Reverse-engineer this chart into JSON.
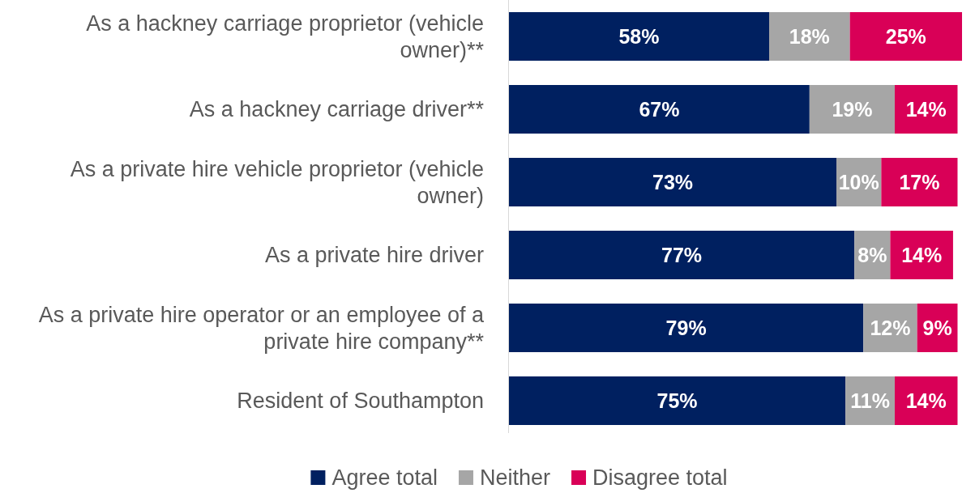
{
  "chart_data": {
    "type": "bar",
    "orientation": "horizontal",
    "stacked": true,
    "legend": "bottom",
    "categories": [
      "As a hackney carriage proprietor (vehicle owner)**",
      "As a hackney carriage driver**",
      "As a private hire vehicle proprietor (vehicle owner)",
      "As a private hire driver",
      "As a private hire operator or an employee of a private hire company**",
      "Resident of Southampton"
    ],
    "series": [
      {
        "name": "Agree total",
        "color": "#002060",
        "values": [
          58,
          67,
          73,
          77,
          79,
          75
        ],
        "value_labels": [
          "58%",
          "67%",
          "73%",
          "77%",
          "79%",
          "75%"
        ]
      },
      {
        "name": "Neither",
        "color": "#a6a6a6",
        "values": [
          18,
          19,
          10,
          8,
          12,
          11
        ],
        "value_labels": [
          "18%",
          "19%",
          "10%",
          "8%",
          "12%",
          "11%"
        ]
      },
      {
        "name": "Disagree total",
        "color": "#d90057",
        "values": [
          25,
          14,
          17,
          14,
          9,
          14
        ],
        "value_labels": [
          "25%",
          "14%",
          "17%",
          "14%",
          "9%",
          "14%"
        ]
      }
    ]
  }
}
